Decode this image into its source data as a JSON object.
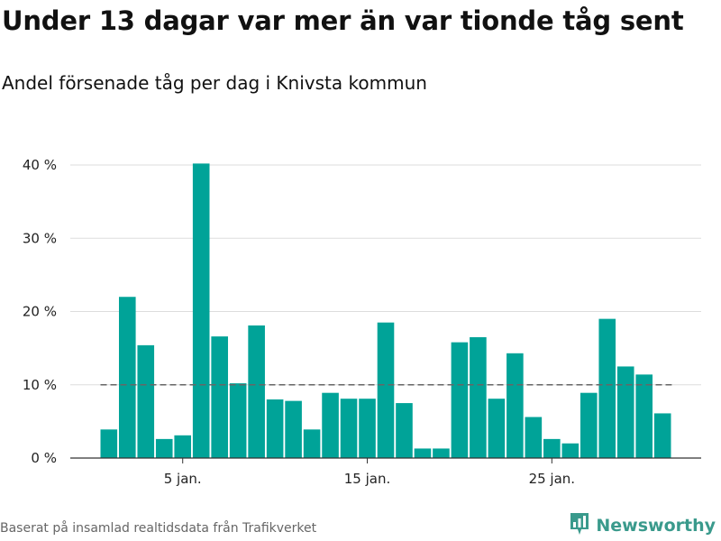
{
  "title": "Under 13 dagar var mer än var tionde tåg sent",
  "subtitle": "Andel försenade tåg per dag i Knivsta kommun",
  "source": "Baserat på insamlad realtidsdata från Trafikverket",
  "brand": {
    "name": "Newsworthy",
    "icon": "newsworthy-logo-icon"
  },
  "colors": {
    "bar": "#00a398",
    "reference_line": "#666666",
    "grid": "#dddddd",
    "axis": "#333333"
  },
  "chart_data": {
    "type": "bar",
    "x": [
      1,
      2,
      3,
      4,
      5,
      6,
      7,
      8,
      9,
      10,
      11,
      12,
      13,
      14,
      15,
      16,
      17,
      18,
      19,
      20,
      21,
      22,
      23,
      24,
      25,
      26,
      27,
      28,
      29,
      30,
      31
    ],
    "values": [
      3.9,
      22.0,
      15.4,
      2.6,
      3.1,
      40.2,
      16.6,
      10.2,
      18.1,
      8.0,
      7.8,
      3.9,
      8.9,
      8.1,
      8.1,
      18.5,
      7.5,
      1.3,
      1.3,
      15.8,
      16.5,
      8.1,
      14.3,
      5.6,
      2.6,
      2.0,
      8.9,
      19.0,
      12.5,
      11.4,
      6.1
    ],
    "x_ticks": [
      {
        "x": 5,
        "label": "5 jan."
      },
      {
        "x": 15,
        "label": "15 jan."
      },
      {
        "x": 25,
        "label": "25 jan."
      }
    ],
    "y_ticks": [
      {
        "value": 0,
        "label": "0 %"
      },
      {
        "value": 10,
        "label": "10 %"
      },
      {
        "value": 20,
        "label": "20 %"
      },
      {
        "value": 30,
        "label": "30 %"
      },
      {
        "value": 40,
        "label": "40 %"
      }
    ],
    "ylim": [
      0,
      40
    ],
    "reference_line": 10,
    "grid": true,
    "xlabel": "",
    "ylabel": ""
  }
}
